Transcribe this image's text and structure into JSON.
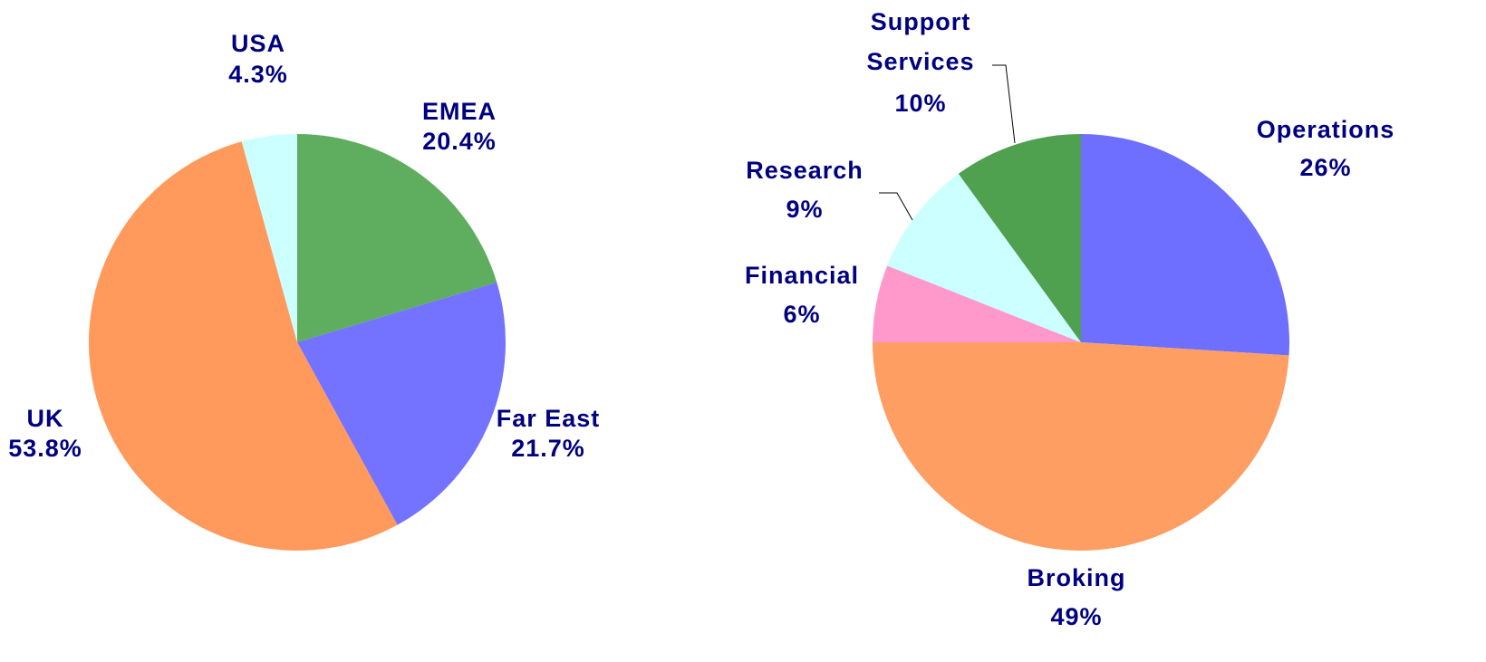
{
  "chart_data": [
    {
      "type": "pie",
      "categories": [
        "EMEA",
        "Far East",
        "UK",
        "USA"
      ],
      "values": [
        20.4,
        21.7,
        53.8,
        4.3
      ],
      "value_labels": [
        "20.4%",
        "21.7%",
        "53.8%",
        "4.3%"
      ],
      "colors": [
        "#5fae5f",
        "#7373ff",
        "#ff9a5c",
        "#ccffff"
      ]
    },
    {
      "type": "pie",
      "categories": [
        "Operations",
        "Broking",
        "Financial",
        "Research",
        "Support Services"
      ],
      "values": [
        26,
        49,
        6,
        9,
        10
      ],
      "value_labels": [
        "26%",
        "49%",
        "6%",
        "9%",
        "10%"
      ],
      "colors": [
        "#6f6fff",
        "#ff9e62",
        "#ff99cc",
        "#ccffff",
        "#4fa04f"
      ]
    }
  ]
}
